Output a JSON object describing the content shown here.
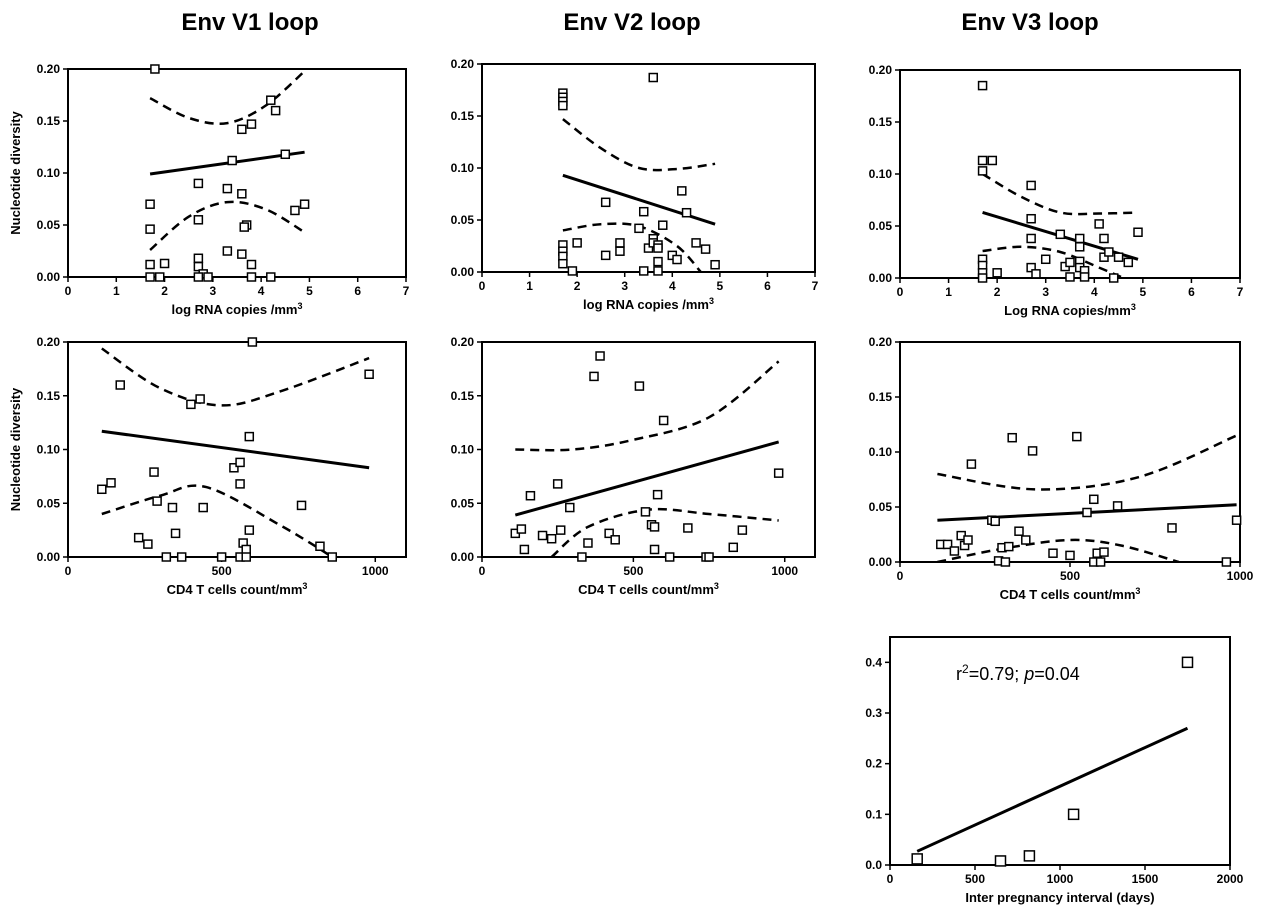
{
  "columns": [
    {
      "title": "Env V1 loop"
    },
    {
      "title": "Env V2 loop"
    },
    {
      "title": "Env V3 loop"
    }
  ],
  "chart_data": [
    {
      "id": "v1-rna",
      "type": "scatter",
      "xlabel": "log RNA copies /mm",
      "xlabel_sup": "3",
      "ylabel": "Nucleotide diversity",
      "xlim": [
        0,
        7
      ],
      "ylim": [
        0,
        0.2
      ],
      "xticks": [
        "0",
        "1",
        "2",
        "3",
        "4",
        "5",
        "6",
        "7"
      ],
      "yticks": [
        "0.00",
        "0.05",
        "0.10",
        "0.15",
        "0.20"
      ],
      "points": [
        [
          1.8,
          0.2
        ],
        [
          1.7,
          0.07
        ],
        [
          1.7,
          0.046
        ],
        [
          1.7,
          0.012
        ],
        [
          1.7,
          0
        ],
        [
          1.9,
          0
        ],
        [
          2.0,
          0.013
        ],
        [
          2.7,
          0.09
        ],
        [
          2.7,
          0.055
        ],
        [
          2.7,
          0.018
        ],
        [
          2.7,
          0.01
        ],
        [
          2.8,
          0.003
        ],
        [
          2.9,
          0
        ],
        [
          2.7,
          0
        ],
        [
          3.3,
          0.085
        ],
        [
          3.3,
          0.025
        ],
        [
          3.4,
          0.112
        ],
        [
          3.6,
          0.142
        ],
        [
          3.8,
          0.147
        ],
        [
          3.6,
          0.08
        ],
        [
          3.7,
          0.05
        ],
        [
          3.65,
          0.048
        ],
        [
          3.6,
          0.022
        ],
        [
          3.8,
          0.012
        ],
        [
          3.8,
          0
        ],
        [
          4.2,
          0
        ],
        [
          4.2,
          0.17
        ],
        [
          4.3,
          0.16
        ],
        [
          4.5,
          0.118
        ],
        [
          4.7,
          0.064
        ],
        [
          4.9,
          0.07
        ]
      ],
      "fit": [
        [
          1.7,
          0.099
        ],
        [
          4.9,
          0.12
        ]
      ],
      "ci_upper": [
        [
          1.7,
          0.172
        ],
        [
          2.5,
          0.153
        ],
        [
          3.3,
          0.148
        ],
        [
          4.1,
          0.165
        ],
        [
          4.9,
          0.198
        ]
      ],
      "ci_lower": [
        [
          1.7,
          0.026
        ],
        [
          2.5,
          0.058
        ],
        [
          3.3,
          0.072
        ],
        [
          4.1,
          0.065
        ],
        [
          4.9,
          0.043
        ]
      ]
    },
    {
      "id": "v2-rna",
      "type": "scatter",
      "xlabel": "log RNA copies /mm",
      "xlabel_sup": "3",
      "ylabel": "",
      "xlim": [
        0,
        7
      ],
      "ylim": [
        0,
        0.2
      ],
      "xticks": [
        "0",
        "1",
        "2",
        "3",
        "4",
        "5",
        "6",
        "7"
      ],
      "yticks": [
        "0.00",
        "0.05",
        "0.10",
        "0.15",
        "0.20"
      ],
      "points": [
        [
          1.7,
          0.172
        ],
        [
          1.7,
          0.168
        ],
        [
          1.7,
          0.164
        ],
        [
          1.7,
          0.16
        ],
        [
          1.7,
          0.026
        ],
        [
          1.7,
          0.02
        ],
        [
          1.7,
          0.015
        ],
        [
          1.7,
          0.008
        ],
        [
          1.9,
          0.001
        ],
        [
          2.0,
          0.028
        ],
        [
          2.6,
          0.067
        ],
        [
          2.6,
          0.016
        ],
        [
          2.9,
          0.02
        ],
        [
          2.9,
          0.028
        ],
        [
          3.3,
          0.042
        ],
        [
          3.4,
          0.058
        ],
        [
          3.5,
          0.023
        ],
        [
          3.6,
          0.187
        ],
        [
          3.6,
          0.032
        ],
        [
          3.6,
          0.028
        ],
        [
          3.7,
          0.026
        ],
        [
          3.7,
          0.023
        ],
        [
          3.8,
          0.045
        ],
        [
          3.7,
          0.001
        ],
        [
          3.4,
          0.001
        ],
        [
          3.7,
          0.01
        ],
        [
          4.0,
          0.016
        ],
        [
          4.1,
          0.012
        ],
        [
          4.2,
          0.078
        ],
        [
          4.3,
          0.057
        ],
        [
          4.5,
          0.028
        ],
        [
          4.7,
          0.022
        ],
        [
          4.9,
          0.007
        ]
      ],
      "fit": [
        [
          1.7,
          0.093
        ],
        [
          4.9,
          0.046
        ]
      ],
      "ci_upper": [
        [
          1.7,
          0.147
        ],
        [
          2.5,
          0.119
        ],
        [
          3.3,
          0.1
        ],
        [
          4.1,
          0.099
        ],
        [
          4.9,
          0.104
        ]
      ],
      "ci_lower": [
        [
          1.7,
          0.04
        ],
        [
          2.5,
          0.046
        ],
        [
          3.3,
          0.044
        ],
        [
          4.1,
          0.025
        ],
        [
          4.6,
          0
        ]
      ]
    },
    {
      "id": "v3-rna",
      "type": "scatter",
      "xlabel": "Log RNA copies/mm",
      "xlabel_sup": "3",
      "ylabel": "",
      "xlim": [
        0,
        7
      ],
      "ylim": [
        0,
        0.2
      ],
      "xticks": [
        "0",
        "1",
        "2",
        "3",
        "4",
        "5",
        "6",
        "7"
      ],
      "yticks": [
        "0.00",
        "0.05",
        "0.10",
        "0.15",
        "0.20"
      ],
      "points": [
        [
          1.7,
          0.185
        ],
        [
          1.7,
          0.113
        ],
        [
          1.7,
          0.103
        ],
        [
          1.9,
          0.113
        ],
        [
          1.7,
          0.018
        ],
        [
          1.7,
          0.012
        ],
        [
          1.7,
          0.005
        ],
        [
          1.7,
          0
        ],
        [
          2.0,
          0.005
        ],
        [
          2.7,
          0.089
        ],
        [
          2.7,
          0.057
        ],
        [
          2.7,
          0.038
        ],
        [
          2.7,
          0.01
        ],
        [
          2.8,
          0.004
        ],
        [
          3.0,
          0.018
        ],
        [
          3.3,
          0.042
        ],
        [
          3.4,
          0.011
        ],
        [
          3.5,
          0.015
        ],
        [
          3.5,
          0.001
        ],
        [
          3.7,
          0.038
        ],
        [
          3.7,
          0.03
        ],
        [
          3.7,
          0.016
        ],
        [
          3.7,
          0.01
        ],
        [
          3.8,
          0.007
        ],
        [
          3.8,
          0.001
        ],
        [
          4.1,
          0.052
        ],
        [
          4.2,
          0.038
        ],
        [
          4.2,
          0.02
        ],
        [
          4.3,
          0.025
        ],
        [
          4.4,
          0
        ],
        [
          4.5,
          0.02
        ],
        [
          4.7,
          0.015
        ],
        [
          4.9,
          0.044
        ]
      ],
      "fit": [
        [
          1.7,
          0.063
        ],
        [
          4.9,
          0.018
        ]
      ],
      "ci_upper": [
        [
          1.7,
          0.1
        ],
        [
          2.5,
          0.078
        ],
        [
          3.3,
          0.063
        ],
        [
          4.1,
          0.062
        ],
        [
          4.9,
          0.063
        ]
      ],
      "ci_lower": [
        [
          1.7,
          0.026
        ],
        [
          2.5,
          0.03
        ],
        [
          3.3,
          0.025
        ],
        [
          4.1,
          0.01
        ],
        [
          4.6,
          0
        ]
      ]
    },
    {
      "id": "v1-cd4",
      "type": "scatter",
      "xlabel": "CD4 T cells count/mm",
      "xlabel_sup": "3",
      "ylabel": "Nucleotide diversity",
      "xlim": [
        0,
        1100
      ],
      "ylim": [
        0,
        0.2
      ],
      "xticks": [
        "0",
        "500",
        "1000"
      ],
      "xtick_values": [
        0,
        500,
        1000
      ],
      "yticks": [
        "0.00",
        "0.05",
        "0.10",
        "0.15",
        "0.20"
      ],
      "points": [
        [
          110,
          0.063
        ],
        [
          140,
          0.069
        ],
        [
          170,
          0.16
        ],
        [
          230,
          0.018
        ],
        [
          260,
          0.012
        ],
        [
          280,
          0.079
        ],
        [
          290,
          0.052
        ],
        [
          320,
          0
        ],
        [
          340,
          0.046
        ],
        [
          350,
          0.022
        ],
        [
          370,
          0
        ],
        [
          400,
          0.142
        ],
        [
          430,
          0.147
        ],
        [
          440,
          0.046
        ],
        [
          500,
          0
        ],
        [
          540,
          0.083
        ],
        [
          560,
          0.088
        ],
        [
          560,
          0.068
        ],
        [
          560,
          0
        ],
        [
          570,
          0.013
        ],
        [
          580,
          0.007
        ],
        [
          580,
          0
        ],
        [
          590,
          0.025
        ],
        [
          590,
          0.112
        ],
        [
          600,
          0.2
        ],
        [
          760,
          0.048
        ],
        [
          820,
          0.01
        ],
        [
          860,
          0
        ],
        [
          980,
          0.17
        ]
      ],
      "fit": [
        [
          110,
          0.117
        ],
        [
          980,
          0.083
        ]
      ],
      "ci_upper": [
        [
          110,
          0.194
        ],
        [
          300,
          0.157
        ],
        [
          500,
          0.141
        ],
        [
          700,
          0.155
        ],
        [
          980,
          0.185
        ]
      ],
      "ci_lower": [
        [
          110,
          0.04
        ],
        [
          300,
          0.057
        ],
        [
          450,
          0.065
        ],
        [
          700,
          0.028
        ],
        [
          860,
          0
        ]
      ]
    },
    {
      "id": "v2-cd4",
      "type": "scatter",
      "xlabel": "CD4 T cells count/mm",
      "xlabel_sup": "3",
      "ylabel": "",
      "xlim": [
        0,
        1100
      ],
      "ylim": [
        0,
        0.2
      ],
      "xticks": [
        "0",
        "500",
        "1000"
      ],
      "xtick_values": [
        0,
        500,
        1000
      ],
      "yticks": [
        "0.00",
        "0.05",
        "0.10",
        "0.15",
        "0.20"
      ],
      "points": [
        [
          110,
          0.022
        ],
        [
          130,
          0.026
        ],
        [
          140,
          0.007
        ],
        [
          160,
          0.057
        ],
        [
          200,
          0.02
        ],
        [
          230,
          0.017
        ],
        [
          250,
          0.068
        ],
        [
          260,
          0.025
        ],
        [
          290,
          0.046
        ],
        [
          330,
          0
        ],
        [
          350,
          0.013
        ],
        [
          370,
          0.168
        ],
        [
          390,
          0.187
        ],
        [
          420,
          0.022
        ],
        [
          440,
          0.016
        ],
        [
          520,
          0.159
        ],
        [
          540,
          0.042
        ],
        [
          560,
          0.03
        ],
        [
          570,
          0.028
        ],
        [
          570,
          0.007
        ],
        [
          600,
          0.127
        ],
        [
          580,
          0.058
        ],
        [
          620,
          0
        ],
        [
          680,
          0.027
        ],
        [
          740,
          0
        ],
        [
          750,
          0
        ],
        [
          830,
          0.009
        ],
        [
          860,
          0.025
        ],
        [
          980,
          0.078
        ]
      ],
      "fit": [
        [
          110,
          0.039
        ],
        [
          980,
          0.107
        ]
      ],
      "ci_upper": [
        [
          110,
          0.1
        ],
        [
          300,
          0.1
        ],
        [
          500,
          0.109
        ],
        [
          750,
          0.13
        ],
        [
          980,
          0.182
        ]
      ],
      "ci_lower": [
        [
          230,
          0
        ],
        [
          350,
          0.028
        ],
        [
          550,
          0.044
        ],
        [
          750,
          0.04
        ],
        [
          980,
          0.034
        ]
      ]
    },
    {
      "id": "v3-cd4",
      "type": "scatter",
      "xlabel": "CD4 T cells count/mm",
      "xlabel_sup": "3",
      "ylabel": "",
      "xlim": [
        0,
        1000
      ],
      "ylim": [
        0,
        0.2
      ],
      "xticks": [
        "0",
        "500",
        "1000"
      ],
      "xtick_values": [
        0,
        500,
        1000
      ],
      "yticks": [
        "0.00",
        "0.05",
        "0.10",
        "0.15",
        "0.20"
      ],
      "points": [
        [
          120,
          0.016
        ],
        [
          140,
          0.016
        ],
        [
          160,
          0.01
        ],
        [
          180,
          0.024
        ],
        [
          190,
          0.015
        ],
        [
          200,
          0.02
        ],
        [
          210,
          0.089
        ],
        [
          270,
          0.038
        ],
        [
          280,
          0.037
        ],
        [
          290,
          0.001
        ],
        [
          300,
          0.013
        ],
        [
          310,
          0
        ],
        [
          320,
          0.014
        ],
        [
          330,
          0.113
        ],
        [
          350,
          0.028
        ],
        [
          370,
          0.02
        ],
        [
          390,
          0.101
        ],
        [
          450,
          0.008
        ],
        [
          500,
          0.006
        ],
        [
          520,
          0.114
        ],
        [
          550,
          0.045
        ],
        [
          570,
          0.057
        ],
        [
          570,
          0
        ],
        [
          580,
          0.008
        ],
        [
          590,
          0
        ],
        [
          600,
          0.009
        ],
        [
          640,
          0.051
        ],
        [
          800,
          0.031
        ],
        [
          960,
          0
        ],
        [
          990,
          0.038
        ]
      ],
      "fit": [
        [
          110,
          0.038
        ],
        [
          990,
          0.052
        ]
      ],
      "ci_upper": [
        [
          110,
          0.08
        ],
        [
          400,
          0.066
        ],
        [
          700,
          0.077
        ],
        [
          990,
          0.115
        ]
      ],
      "ci_lower": [
        [
          110,
          0
        ],
        [
          300,
          0.012
        ],
        [
          500,
          0.02
        ],
        [
          650,
          0.015
        ],
        [
          820,
          0
        ]
      ]
    },
    {
      "id": "interval",
      "type": "scatter",
      "xlabel": "Inter pregnancy interval (days)",
      "xlabel_sup": "",
      "ylabel": "",
      "xlim": [
        0,
        2000
      ],
      "ylim": [
        0,
        0.45
      ],
      "xticks": [
        "0",
        "500",
        "1000",
        "1500",
        "2000"
      ],
      "xtick_values": [
        0,
        500,
        1000,
        1500,
        2000
      ],
      "yticks": [
        "0.0",
        "0.1",
        "0.2",
        "0.3",
        "0.4"
      ],
      "ytick_values": [
        0,
        0.1,
        0.2,
        0.3,
        0.4
      ],
      "points": [
        [
          160,
          0.012
        ],
        [
          650,
          0.008
        ],
        [
          820,
          0.018
        ],
        [
          1080,
          0.1
        ],
        [
          1750,
          0.4
        ]
      ],
      "fit": [
        [
          160,
          0.027
        ],
        [
          1750,
          0.27
        ]
      ],
      "ci_upper": [],
      "ci_lower": [],
      "annotation": "=0.79; ",
      "annotation_r": "r",
      "annotation_sup": "2",
      "annotation_p": "p",
      "annotation_p_value": "=0.04"
    }
  ]
}
